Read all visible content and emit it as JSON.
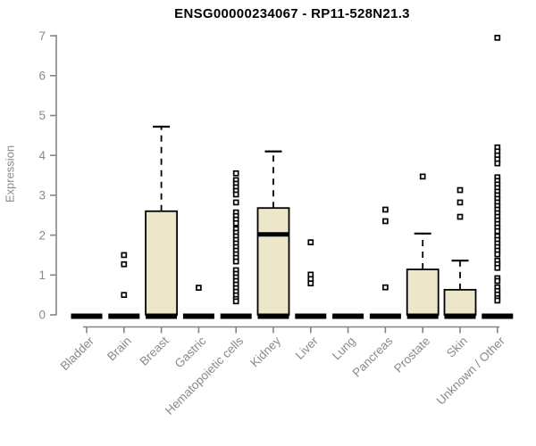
{
  "colors": {
    "background": "#ffffff",
    "box_fill": "#ece6ca",
    "box_border": "#000000",
    "median": "#000000",
    "outlier": "#000000",
    "axis_line": "#858585",
    "tick_label": "#8a8a8a",
    "title": "#000000"
  },
  "chart_data": {
    "type": "boxplot",
    "title": "ENSG00000234067 - RP11-528N21.3",
    "xlabel": "",
    "ylabel": "Expression",
    "ylim": [
      0,
      7
    ],
    "yticks": [
      0,
      1,
      2,
      3,
      4,
      5,
      6,
      7
    ],
    "grid": false,
    "legend": false,
    "categories": [
      "Bladder",
      "Brain",
      "Breast",
      "Gastric",
      "Hematopoietic cells",
      "Kidney",
      "Liver",
      "Lung",
      "Pancreas",
      "Prostate",
      "Skin",
      "Unknown / Other"
    ],
    "boxes": [
      {
        "category": "Bladder",
        "q1": 0,
        "median": 0,
        "q3": 0,
        "whisker_low": 0,
        "whisker_high": 0,
        "outliers": []
      },
      {
        "category": "Brain",
        "q1": 0,
        "median": 0,
        "q3": 0,
        "whisker_low": 0,
        "whisker_high": 0,
        "outliers": [
          1.5,
          1.27,
          0.5
        ]
      },
      {
        "category": "Breast",
        "q1": 0,
        "median": 0,
        "q3": 2.6,
        "whisker_low": 0,
        "whisker_high": 4.72,
        "outliers": []
      },
      {
        "category": "Gastric",
        "q1": 0,
        "median": 0,
        "q3": 0,
        "whisker_low": 0,
        "whisker_high": 0,
        "outliers": [
          0.68
        ]
      },
      {
        "category": "Hematopoietic cells",
        "q1": 0,
        "median": 0,
        "q3": 0,
        "whisker_low": 0,
        "whisker_high": 0,
        "outliers": [
          3.55,
          3.38,
          3.29,
          3.2,
          3.11,
          3.02,
          2.82,
          2.57,
          2.48,
          2.39,
          2.3,
          2.15,
          2.06,
          1.97,
          1.88,
          1.79,
          1.7,
          1.61,
          1.52,
          1.43,
          1.34,
          1.12,
          1.03,
          0.94,
          0.85,
          0.76,
          0.67,
          0.58,
          0.49,
          0.4,
          0.34
        ]
      },
      {
        "category": "Kidney",
        "q1": 0,
        "median": 2.02,
        "q3": 2.68,
        "whisker_low": 0,
        "whisker_high": 4.1,
        "outliers": []
      },
      {
        "category": "Liver",
        "q1": 0,
        "median": 0,
        "q3": 0,
        "whisker_low": 0,
        "whisker_high": 0,
        "outliers": [
          1.82,
          1.01,
          0.9,
          0.79
        ]
      },
      {
        "category": "Lung",
        "q1": 0,
        "median": 0,
        "q3": 0,
        "whisker_low": 0,
        "whisker_high": 0,
        "outliers": []
      },
      {
        "category": "Pancreas",
        "q1": 0,
        "median": 0,
        "q3": 0,
        "whisker_low": 0,
        "whisker_high": 0,
        "outliers": [
          2.64,
          2.35,
          0.69
        ]
      },
      {
        "category": "Prostate",
        "q1": 0,
        "median": 0,
        "q3": 1.14,
        "whisker_low": 0,
        "whisker_high": 2.04,
        "outliers": [
          3.47
        ]
      },
      {
        "category": "Skin",
        "q1": 0,
        "median": 0,
        "q3": 0.63,
        "whisker_low": 0,
        "whisker_high": 1.36,
        "outliers": [
          3.13,
          2.82,
          2.46
        ]
      },
      {
        "category": "Unknown / Other",
        "q1": 0,
        "median": 0,
        "q3": 0,
        "whisker_low": 0,
        "whisker_high": 0,
        "outliers": [
          6.95,
          4.2,
          4.1,
          4.0,
          3.9,
          3.8,
          3.45,
          3.36,
          3.27,
          3.18,
          3.09,
          3.0,
          2.91,
          2.82,
          2.73,
          2.64,
          2.55,
          2.46,
          2.37,
          2.28,
          2.19,
          2.1,
          1.97,
          1.88,
          1.79,
          1.7,
          1.61,
          1.52,
          1.36,
          1.27,
          1.18,
          0.92,
          0.85,
          0.69,
          0.6,
          0.51,
          0.42,
          0.36
        ]
      }
    ]
  }
}
